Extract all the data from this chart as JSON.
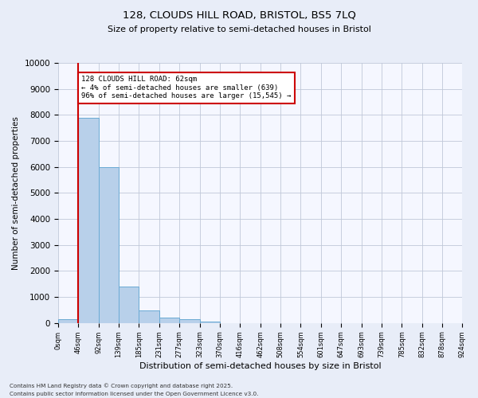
{
  "title_line1": "128, CLOUDS HILL ROAD, BRISTOL, BS5 7LQ",
  "title_line2": "Size of property relative to semi-detached houses in Bristol",
  "xlabel": "Distribution of semi-detached houses by size in Bristol",
  "ylabel": "Number of semi-detached properties",
  "bar_values": [
    150,
    7900,
    6000,
    1400,
    480,
    220,
    130,
    60,
    0,
    0,
    0,
    0,
    0,
    0,
    0,
    0,
    0,
    0,
    0,
    0
  ],
  "bin_labels": [
    "0sqm",
    "46sqm",
    "92sqm",
    "139sqm",
    "185sqm",
    "231sqm",
    "277sqm",
    "323sqm",
    "370sqm",
    "416sqm",
    "462sqm",
    "508sqm",
    "554sqm",
    "601sqm",
    "647sqm",
    "693sqm",
    "739sqm",
    "785sqm",
    "832sqm",
    "878sqm",
    "924sqm"
  ],
  "ylim": [
    0,
    10000
  ],
  "yticks": [
    0,
    1000,
    2000,
    3000,
    4000,
    5000,
    6000,
    7000,
    8000,
    9000,
    10000
  ],
  "bar_color": "#b8d0ea",
  "bar_edge_color": "#6aaad4",
  "vline_x": 1.0,
  "vline_color": "#cc0000",
  "annotation_title": "128 CLOUDS HILL ROAD: 62sqm",
  "annotation_line1": "← 4% of semi-detached houses are smaller (639)",
  "annotation_line2": "96% of semi-detached houses are larger (15,545) →",
  "annotation_box_color": "#cc0000",
  "footer_line1": "Contains HM Land Registry data © Crown copyright and database right 2025.",
  "footer_line2": "Contains public sector information licensed under the Open Government Licence v3.0.",
  "bg_color": "#e8edf8",
  "plot_bg_color": "#f5f7ff"
}
